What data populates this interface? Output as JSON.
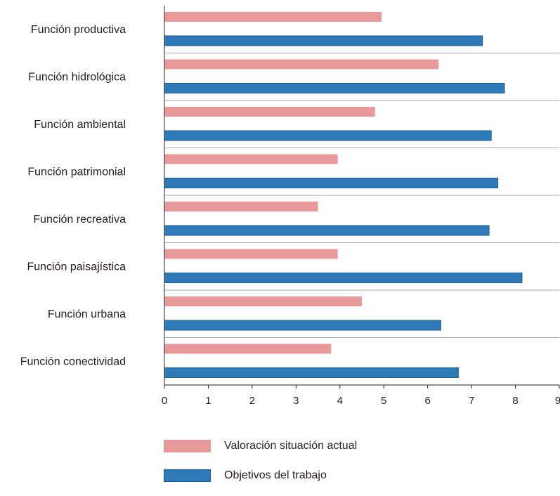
{
  "chart_data": {
    "type": "bar",
    "orientation": "horizontal",
    "categories": [
      "Función productiva",
      "Función hidrológica",
      "Función ambiental",
      "Función patrimonial",
      "Función recreativa",
      "Función paisajística",
      "Función urbana",
      "Función conectividad"
    ],
    "series": [
      {
        "name": "Valoración situación actual",
        "color": "#e8999a",
        "values": [
          4.95,
          6.25,
          4.8,
          3.95,
          3.5,
          3.95,
          4.5,
          3.8
        ]
      },
      {
        "name": "Objetivos del trabajo",
        "color": "#2e7ab8",
        "values": [
          7.25,
          7.75,
          7.45,
          7.6,
          7.4,
          8.15,
          6.3,
          6.7
        ]
      }
    ],
    "xlim": [
      0,
      9
    ],
    "xticks": [
      "0",
      "1",
      "2",
      "3",
      "4",
      "5",
      "6",
      "7",
      "8",
      "9"
    ],
    "grid": "horizontal separators between categories",
    "legend_position": "bottom"
  }
}
